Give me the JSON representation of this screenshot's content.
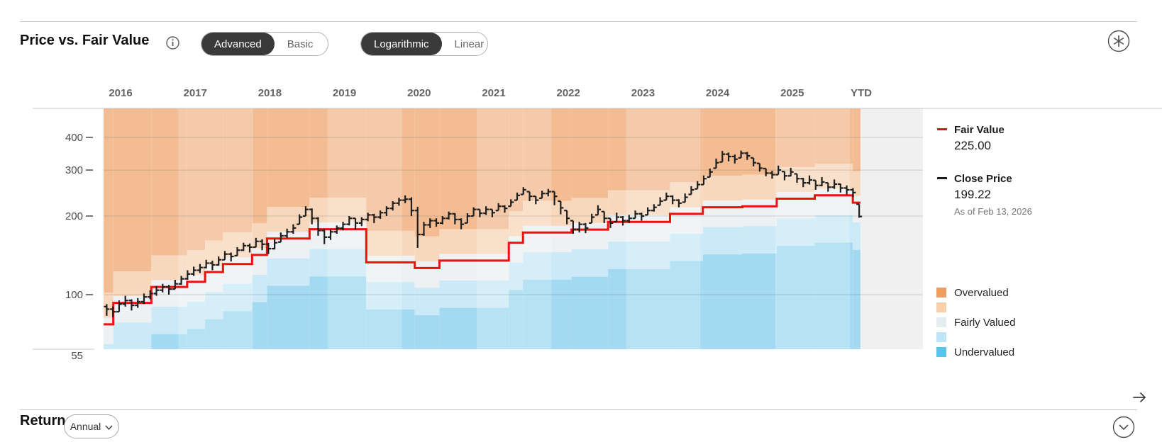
{
  "header": {
    "title": "Price vs. Fair Value",
    "toggles": [
      {
        "options": [
          "Advanced",
          "Basic"
        ],
        "selected": "Advanced"
      },
      {
        "options": [
          "Logarithmic",
          "Linear"
        ],
        "selected": "Logarithmic"
      }
    ]
  },
  "legend": {
    "fair_value": {
      "label": "Fair Value",
      "value": "225.00",
      "color": "#ee0f0f"
    },
    "close_price": {
      "label": "Close Price",
      "value": "199.22",
      "as_of": "As of Feb 13, 2026",
      "color": "#1a1a1a"
    },
    "valuation": [
      {
        "label": "Overvalued",
        "color": "#ef9e62"
      },
      {
        "label": "",
        "color": "#f8cfab"
      },
      {
        "label": "Fairly Valued",
        "color": "#e6edf0"
      },
      {
        "label": "",
        "color": "#bee5f6"
      },
      {
        "label": "Undervalued",
        "color": "#59c4eb"
      }
    ]
  },
  "chart_data": {
    "type": "price-vs-fair-value",
    "x_labels": [
      "2016",
      "2017",
      "2018",
      "2019",
      "2020",
      "2021",
      "2022",
      "2023",
      "2024",
      "2025",
      "YTD"
    ],
    "y_ticks": [
      400,
      300,
      200,
      100
    ],
    "y_bottom_label": "55",
    "y_scale": "logarithmic",
    "fair_value_steps": [
      [
        2016.0,
        77
      ],
      [
        2016.13,
        93
      ],
      [
        2016.64,
        107
      ],
      [
        2017.12,
        112
      ],
      [
        2017.36,
        122
      ],
      [
        2017.6,
        131
      ],
      [
        2017.99,
        142
      ],
      [
        2018.19,
        164
      ],
      [
        2018.76,
        178
      ],
      [
        2019.52,
        133
      ],
      [
        2020.17,
        126.5
      ],
      [
        2020.5,
        135
      ],
      [
        2021.43,
        158
      ],
      [
        2021.62,
        173
      ],
      [
        2022.27,
        177.5
      ],
      [
        2022.76,
        190
      ],
      [
        2023.59,
        204
      ],
      [
        2024.03,
        216
      ],
      [
        2024.56,
        218
      ],
      [
        2025.02,
        233
      ],
      [
        2025.53,
        240
      ],
      [
        2026.04,
        225
      ]
    ],
    "fair_value_end": 2026.142,
    "monthly_bars_start": "2016-01",
    "monthly_bars": [
      [
        83,
        92,
        88
      ],
      [
        82,
        90,
        86
      ],
      [
        86,
        95,
        92
      ],
      [
        90,
        99,
        95
      ],
      [
        87,
        96,
        91
      ],
      [
        89,
        97,
        94
      ],
      [
        92,
        101,
        98
      ],
      [
        96,
        104,
        101
      ],
      [
        99,
        108,
        104
      ],
      [
        102,
        110,
        107
      ],
      [
        100,
        109,
        105
      ],
      [
        105,
        114,
        110
      ],
      [
        109,
        118,
        115
      ],
      [
        114,
        124,
        120
      ],
      [
        118,
        128,
        124
      ],
      [
        121,
        131,
        127
      ],
      [
        126,
        136,
        132
      ],
      [
        124,
        135,
        130
      ],
      [
        129,
        140,
        136
      ],
      [
        136,
        147,
        143
      ],
      [
        134,
        145,
        140
      ],
      [
        141,
        152,
        148
      ],
      [
        147,
        158,
        154
      ],
      [
        145,
        157,
        152
      ],
      [
        152,
        165,
        160
      ],
      [
        148,
        163,
        156
      ],
      [
        143,
        158,
        150
      ],
      [
        149,
        163,
        158
      ],
      [
        159,
        173,
        168
      ],
      [
        165,
        179,
        174
      ],
      [
        171,
        186,
        180
      ],
      [
        186,
        203,
        198
      ],
      [
        200,
        218,
        212
      ],
      [
        186,
        214,
        196
      ],
      [
        168,
        198,
        176
      ],
      [
        156,
        178,
        166
      ],
      [
        162,
        178,
        174
      ],
      [
        171,
        184,
        180
      ],
      [
        176,
        190,
        186
      ],
      [
        184,
        200,
        196
      ],
      [
        178,
        196,
        188
      ],
      [
        183,
        198,
        194
      ],
      [
        191,
        206,
        202
      ],
      [
        188,
        204,
        198
      ],
      [
        195,
        210,
        206
      ],
      [
        200,
        218,
        214
      ],
      [
        210,
        228,
        224
      ],
      [
        219,
        235,
        230
      ],
      [
        224,
        240,
        232
      ],
      [
        200,
        236,
        210
      ],
      [
        151,
        217,
        170
      ],
      [
        168,
        190,
        185
      ],
      [
        180,
        196,
        192
      ],
      [
        182,
        196,
        188
      ],
      [
        186,
        200,
        196
      ],
      [
        194,
        208,
        204
      ],
      [
        186,
        205,
        194
      ],
      [
        178,
        196,
        186
      ],
      [
        188,
        205,
        200
      ],
      [
        200,
        216,
        212
      ],
      [
        198,
        212,
        205
      ],
      [
        202,
        218,
        212
      ],
      [
        198,
        212,
        206
      ],
      [
        210,
        224,
        218
      ],
      [
        206,
        220,
        214
      ],
      [
        218,
        232,
        226
      ],
      [
        230,
        246,
        240
      ],
      [
        242,
        258,
        252
      ],
      [
        228,
        248,
        238
      ],
      [
        222,
        238,
        230
      ],
      [
        234,
        250,
        244
      ],
      [
        238,
        254,
        248
      ],
      [
        220,
        248,
        238
      ],
      [
        203,
        228,
        215
      ],
      [
        186,
        210,
        196
      ],
      [
        171,
        192,
        178
      ],
      [
        173,
        190,
        186
      ],
      [
        172,
        188,
        180
      ],
      [
        188,
        204,
        198
      ],
      [
        202,
        220,
        212
      ],
      [
        188,
        208,
        196
      ],
      [
        180,
        196,
        188
      ],
      [
        190,
        206,
        198
      ],
      [
        184,
        200,
        192
      ],
      [
        188,
        202,
        196
      ],
      [
        196,
        210,
        204
      ],
      [
        192,
        206,
        200
      ],
      [
        202,
        216,
        210
      ],
      [
        208,
        222,
        216
      ],
      [
        220,
        236,
        228
      ],
      [
        230,
        246,
        238
      ],
      [
        222,
        240,
        230
      ],
      [
        216,
        232,
        224
      ],
      [
        226,
        244,
        236
      ],
      [
        242,
        260,
        252
      ],
      [
        254,
        272,
        264
      ],
      [
        264,
        286,
        278
      ],
      [
        282,
        304,
        295
      ],
      [
        305,
        332,
        320
      ],
      [
        322,
        355,
        345
      ],
      [
        324,
        350,
        338
      ],
      [
        318,
        344,
        330
      ],
      [
        334,
        356,
        348
      ],
      [
        328,
        352,
        340
      ],
      [
        310,
        334,
        320
      ],
      [
        296,
        318,
        305
      ],
      [
        284,
        304,
        292
      ],
      [
        278,
        298,
        288
      ],
      [
        288,
        312,
        300
      ],
      [
        274,
        296,
        285
      ],
      [
        284,
        306,
        295
      ],
      [
        268,
        290,
        278
      ],
      [
        258,
        280,
        268
      ],
      [
        264,
        286,
        275
      ],
      [
        252,
        274,
        262
      ],
      [
        260,
        282,
        270
      ],
      [
        248,
        268,
        258
      ],
      [
        254,
        276,
        265
      ],
      [
        246,
        266,
        256
      ],
      [
        242,
        262,
        252
      ],
      [
        236,
        256,
        246
      ],
      [
        197,
        222,
        199.22
      ]
    ],
    "band_ratios": [
      1.32,
      1.06,
      0.84,
      0.66
    ],
    "band_colors": [
      "#f3bc92",
      "#f8d8bd",
      "#edf1f3",
      "#cbe9f6",
      "#a3daf1"
    ],
    "fair_value_line_color": "#ee0f0f",
    "bar_color": "#1f1f1f",
    "future_zone_color": "#f0f0f0",
    "grid_on": true
  },
  "footer": {
    "title": "Returns",
    "dropdown_label": "Annual"
  }
}
